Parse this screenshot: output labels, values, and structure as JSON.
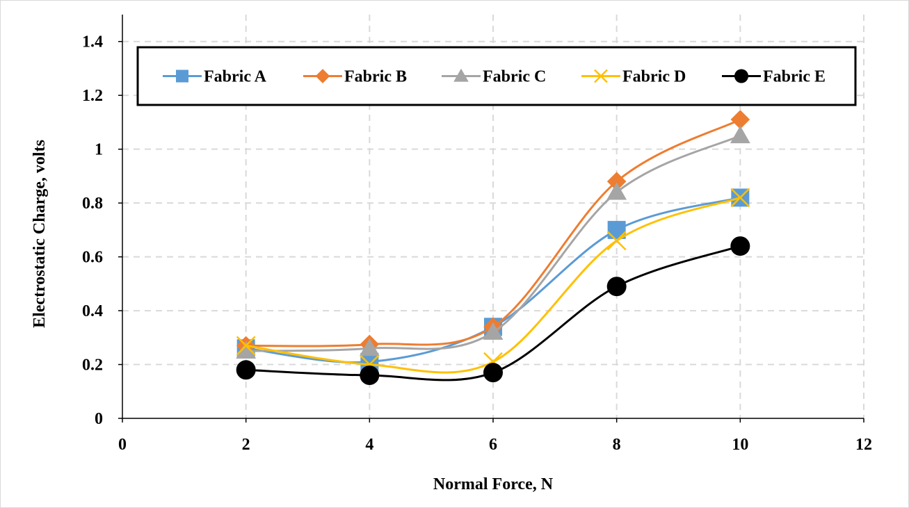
{
  "chart_data": {
    "type": "line",
    "title": "",
    "xlabel": "Normal Force, N",
    "ylabel": "Electrostatic Charge, volts",
    "xlim": [
      0,
      12
    ],
    "ylim": [
      0,
      1.5
    ],
    "x_ticks": [
      "0",
      "2",
      "4",
      "6",
      "8",
      "10",
      "12"
    ],
    "y_ticks": [
      "0",
      "0.2",
      "0.4",
      "0.6",
      "0.8",
      "1",
      "1.2",
      "1.4"
    ],
    "grid": "dashed, both axes",
    "legend_position": "top (inside plot, boxed)",
    "x": [
      2,
      4,
      6,
      8,
      10
    ],
    "series": [
      {
        "name": "Fabric A",
        "values": [
          0.26,
          0.21,
          0.34,
          0.7,
          0.82
        ],
        "color": "#5B9BD5",
        "marker": "square"
      },
      {
        "name": "Fabric B",
        "values": [
          0.27,
          0.275,
          0.34,
          0.88,
          1.11
        ],
        "color": "#ED7D31",
        "marker": "diamond"
      },
      {
        "name": "Fabric C",
        "values": [
          0.25,
          0.26,
          0.32,
          0.84,
          1.05
        ],
        "color": "#A5A5A5",
        "marker": "triangle"
      },
      {
        "name": "Fabric D",
        "values": [
          0.27,
          0.2,
          0.21,
          0.66,
          0.82
        ],
        "color": "#FFC000",
        "marker": "x"
      },
      {
        "name": "Fabric E",
        "values": [
          0.18,
          0.16,
          0.17,
          0.49,
          0.64
        ],
        "color": "#000000",
        "marker": "circle"
      }
    ]
  }
}
